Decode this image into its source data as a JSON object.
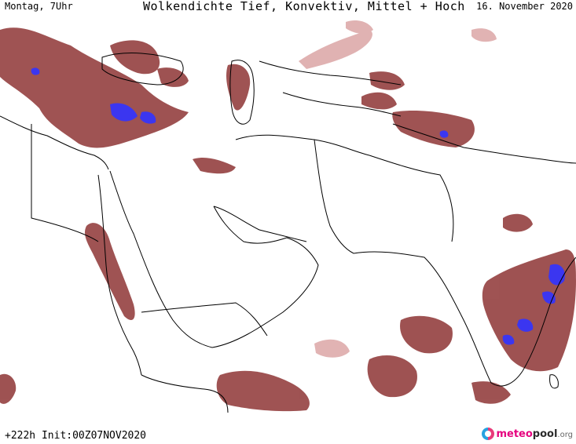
{
  "header": {
    "day_time": "Montag, 7Uhr",
    "title": "Wolkendichte  Tief, Konvektiv, Mittel + Hoch",
    "date": "16. November 2020"
  },
  "footer": {
    "init": "+222h Init:00Z07NOV2020",
    "brand_1": "meteo",
    "brand_2": "pool",
    "brand_3": ".org"
  },
  "colors": {
    "cloud": "#8e3535",
    "cloud_light": "#d9a0a0",
    "convective": "#3b36f0",
    "border": "#000000"
  }
}
